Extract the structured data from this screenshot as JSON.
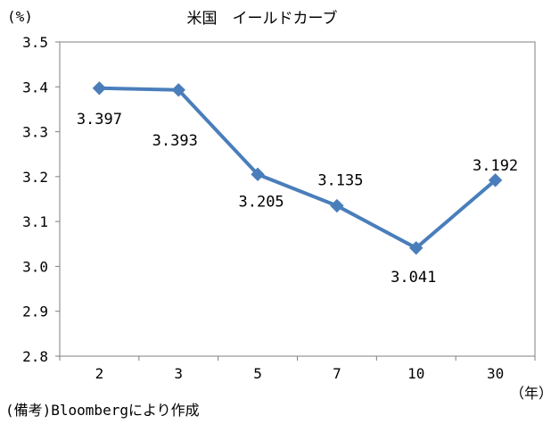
{
  "chart_data": {
    "type": "line",
    "title": "米国　イールドカーブ",
    "ylabel": "(%)",
    "xlabel": "（年）",
    "categories": [
      "2",
      "3",
      "5",
      "7",
      "10",
      "30"
    ],
    "series": [
      {
        "values": [
          3.397,
          3.393,
          3.205,
          3.135,
          3.041,
          3.192
        ]
      }
    ],
    "data_labels": [
      "3.397",
      "3.393",
      "3.205",
      "3.135",
      "3.041",
      "3.192"
    ],
    "y_ticks": [
      "3.5",
      "3.4",
      "3.3",
      "3.2",
      "3.1",
      "3.0",
      "2.9",
      "2.8"
    ],
    "ylim": [
      2.8,
      3.5
    ],
    "grid": false,
    "legend": "none",
    "line_color": "#4a7ebb",
    "marker": "diamond"
  },
  "source_note": "(備考)Bloombergにより作成"
}
